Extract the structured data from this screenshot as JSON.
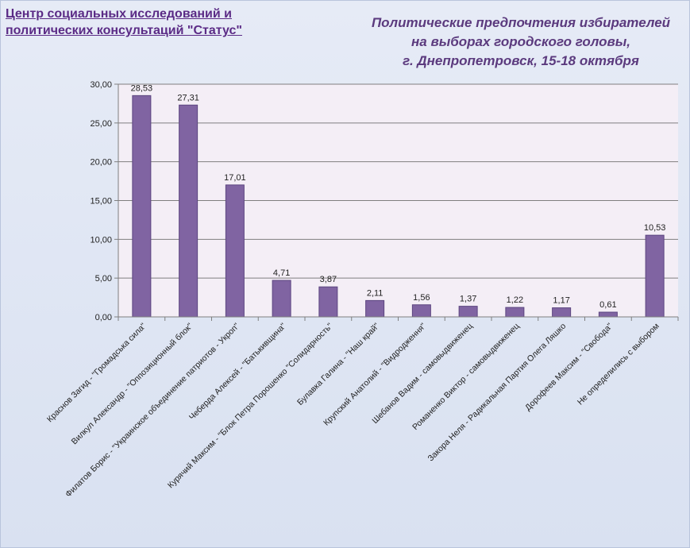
{
  "header": {
    "org_line1": "Центр социальных исследований и",
    "org_line2": "политических консультаций \"Статус\""
  },
  "chart_data": {
    "type": "bar",
    "title_lines": [
      "Политические  предпочтения  избирателей",
      "на выборах городского головы,",
      "г. Днепропетровск,  15-18 октября"
    ],
    "categories": [
      "Краснов Загид - \"Громадська сила\"",
      "Вилкул Александр - \"Оппозиционный блок\"",
      "Филатов Борис - \"Украинское объединение  патриотов - Укроп\"",
      "Чеберда Алексей - \"Батькивщина\"",
      "Курячий Максим - \"Блок Петра Порошенко \"Солидарность\"",
      "Булавка Галина - \"Наш край\"",
      "Крупский Анатолий - \"Видродження\"",
      "Шебанов Вадим - самовыдвиженец",
      "Романенко Виктор - самовыдвиженец",
      "Закора Неля - Радикальная Партия Олега Ляшко",
      "Дорофеев Максим - \"Свобода\"",
      "Не определились с выбором"
    ],
    "values": [
      28.53,
      27.31,
      17.01,
      4.71,
      3.87,
      2.11,
      1.56,
      1.37,
      1.22,
      1.17,
      0.61,
      10.53
    ],
    "value_labels": [
      "28,53",
      "27,31",
      "17,01",
      "4,71",
      "3,87",
      "2,11",
      "1,56",
      "1,37",
      "1,22",
      "1,17",
      "0,61",
      "10,53"
    ],
    "y_ticks": [
      0,
      5,
      10,
      15,
      20,
      25,
      30
    ],
    "y_tick_labels": [
      "0,00",
      "5,00",
      "10,00",
      "15,00",
      "20,00",
      "25,00",
      "30,00"
    ],
    "ylim": [
      0,
      30
    ],
    "grid": true,
    "xlabel": "",
    "ylabel": "",
    "colors": {
      "bar": "#8064a2",
      "bar_edge": "#5c4680",
      "plot_bg": "#f4eef6",
      "grid": "#7f7f7f",
      "axis": "#7f7f7f"
    }
  }
}
